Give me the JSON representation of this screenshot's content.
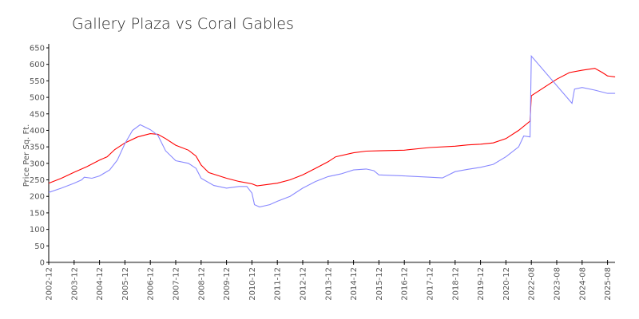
{
  "chart_data": {
    "type": "line",
    "title": "Gallery Plaza vs Coral Gables",
    "xlabel": "",
    "ylabel": "Price Per Sq. Ft.",
    "ylim": [
      0,
      650
    ],
    "yticks": [
      0,
      50,
      100,
      150,
      200,
      250,
      300,
      350,
      400,
      450,
      500,
      550,
      600,
      650
    ],
    "categories": [
      "2002-12",
      "2003-12",
      "2004-12",
      "2005-12",
      "2006-12",
      "2007-12",
      "2008-12",
      "2009-12",
      "2010-12",
      "2011-12",
      "2012-12",
      "2013-12",
      "2014-12",
      "2015-12",
      "2016-12",
      "2017-12",
      "2018-12",
      "2019-12",
      "2020-12",
      "2022-08",
      "2023-08",
      "2024-08",
      "2025-08"
    ],
    "grid": false,
    "series": [
      {
        "color": "#ff0000",
        "points": [
          [
            0,
            240
          ],
          [
            0.5,
            255
          ],
          [
            1,
            273
          ],
          [
            1.5,
            290
          ],
          [
            2,
            310
          ],
          [
            2.3,
            320
          ],
          [
            2.6,
            342
          ],
          [
            3,
            362
          ],
          [
            3.5,
            380
          ],
          [
            4,
            390
          ],
          [
            4.3,
            388
          ],
          [
            4.6,
            375
          ],
          [
            5,
            355
          ],
          [
            5.5,
            340
          ],
          [
            5.8,
            322
          ],
          [
            6,
            295
          ],
          [
            6.3,
            272
          ],
          [
            7,
            255
          ],
          [
            7.5,
            245
          ],
          [
            8,
            238
          ],
          [
            8.2,
            232
          ],
          [
            9,
            240
          ],
          [
            9.5,
            250
          ],
          [
            10,
            265
          ],
          [
            10.5,
            285
          ],
          [
            11,
            305
          ],
          [
            11.3,
            320
          ],
          [
            12,
            332
          ],
          [
            12.5,
            337
          ],
          [
            13,
            338
          ],
          [
            14,
            340
          ],
          [
            15,
            348
          ],
          [
            16,
            352
          ],
          [
            16.5,
            356
          ],
          [
            17,
            358
          ],
          [
            17.5,
            362
          ],
          [
            18,
            375
          ],
          [
            18.5,
            400
          ],
          [
            18.95,
            428
          ],
          [
            19,
            505
          ],
          [
            19.5,
            530
          ],
          [
            20,
            555
          ],
          [
            20.5,
            575
          ],
          [
            21,
            582
          ],
          [
            21.5,
            588
          ],
          [
            21.8,
            575
          ],
          [
            22,
            565
          ],
          [
            22.3,
            562
          ]
        ]
      },
      {
        "color": "#8888ff",
        "points": [
          [
            0,
            212
          ],
          [
            0.5,
            225
          ],
          [
            1,
            240
          ],
          [
            1.3,
            250
          ],
          [
            1.4,
            258
          ],
          [
            1.7,
            255
          ],
          [
            2,
            262
          ],
          [
            2.4,
            280
          ],
          [
            2.7,
            310
          ],
          [
            3,
            360
          ],
          [
            3.3,
            400
          ],
          [
            3.6,
            417
          ],
          [
            4,
            402
          ],
          [
            4.3,
            385
          ],
          [
            4.6,
            338
          ],
          [
            5,
            308
          ],
          [
            5.5,
            300
          ],
          [
            5.8,
            285
          ],
          [
            6,
            255
          ],
          [
            6.5,
            233
          ],
          [
            7,
            225
          ],
          [
            7.5,
            230
          ],
          [
            7.8,
            230
          ],
          [
            8,
            210
          ],
          [
            8.1,
            175
          ],
          [
            8.3,
            168
          ],
          [
            8.7,
            175
          ],
          [
            9,
            185
          ],
          [
            9.5,
            200
          ],
          [
            10,
            225
          ],
          [
            10.5,
            245
          ],
          [
            11,
            260
          ],
          [
            11.5,
            268
          ],
          [
            12,
            280
          ],
          [
            12.5,
            283
          ],
          [
            12.8,
            278
          ],
          [
            13,
            265
          ],
          [
            14,
            262
          ],
          [
            15,
            258
          ],
          [
            15.5,
            256
          ],
          [
            16,
            275
          ],
          [
            16.5,
            282
          ],
          [
            17,
            288
          ],
          [
            17.5,
            297
          ],
          [
            18,
            320
          ],
          [
            18.5,
            350
          ],
          [
            18.7,
            383
          ],
          [
            18.95,
            380
          ],
          [
            19,
            625
          ],
          [
            20.6,
            482
          ],
          [
            20.7,
            525
          ],
          [
            21,
            530
          ],
          [
            21.5,
            522
          ],
          [
            22,
            512
          ],
          [
            22.3,
            512
          ]
        ]
      }
    ]
  }
}
